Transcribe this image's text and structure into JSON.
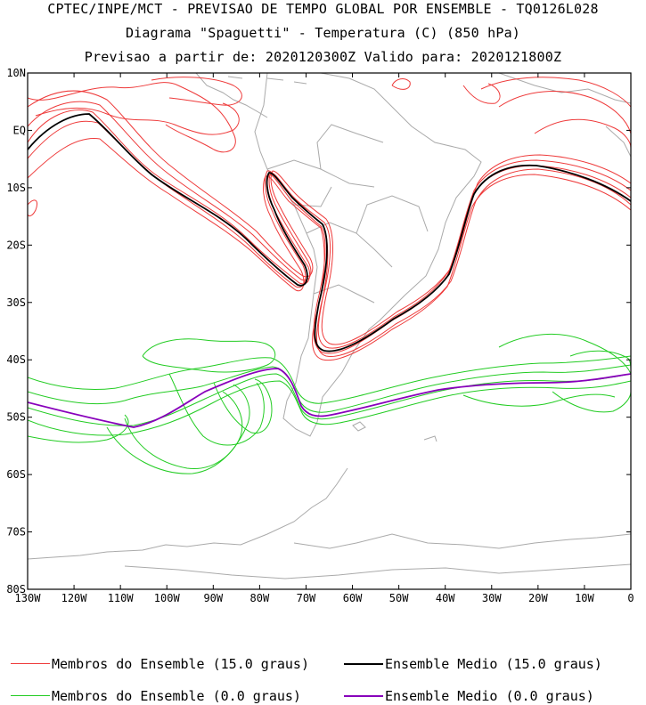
{
  "header": {
    "line1": "CPTEC/INPE/MCT - PREVISAO DE TEMPO GLOBAL POR ENSEMBLE - TQ0126L028",
    "line2": "Diagrama \"Spaguetti\" - Temperatura (C) (850 hPa)",
    "line3": "Previsao a partir de: 2020120300Z  Valido para: 2020121800Z"
  },
  "axes": {
    "lat_labels": [
      "10N",
      "EQ",
      "10S",
      "20S",
      "30S",
      "40S",
      "50S",
      "60S",
      "70S",
      "80S"
    ],
    "lon_labels": [
      "130W",
      "120W",
      "110W",
      "100W",
      "90W",
      "80W",
      "70W",
      "60W",
      "50W",
      "40W",
      "30W",
      "20W",
      "10W",
      "0"
    ],
    "lat_range": [
      -80,
      10
    ],
    "lon_range": [
      -130,
      0
    ]
  },
  "legend": [
    {
      "label": "Membros do Ensemble (15.0 graus)",
      "color": "#ee3a3a"
    },
    {
      "label": "Ensemble Medio (15.0 graus)",
      "color": "#000000"
    },
    {
      "label": "Membros do Ensemble (0.0 graus)",
      "color": "#22cc22"
    },
    {
      "label": "Ensemble Medio (0.0 graus)",
      "color": "#8800bb"
    }
  ],
  "colors": {
    "member_15": "#ee3a3a",
    "mean_15": "#000000",
    "member_0": "#22cc22",
    "mean_0": "#8800bb",
    "coast": "#aaaaaa"
  }
}
